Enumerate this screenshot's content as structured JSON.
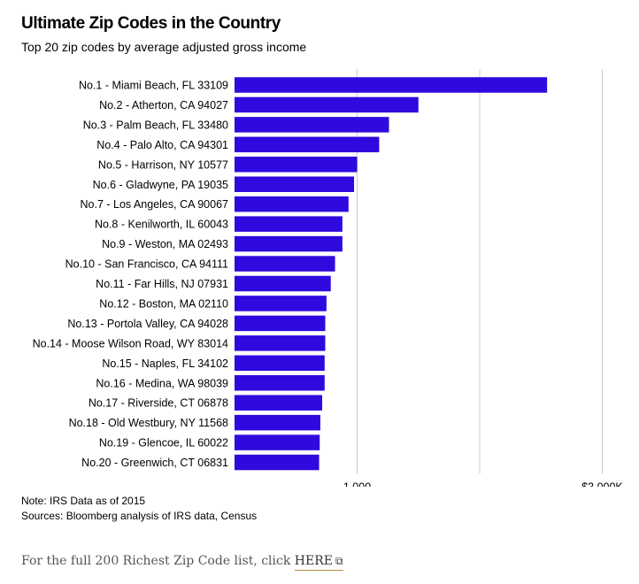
{
  "title": "Ultimate Zip Codes in the Country",
  "subtitle": "Top 20 zip codes by average adjusted gross income",
  "notes": {
    "note": "Note: IRS Data as of 2015",
    "sources": "Sources: Bloomberg analysis of IRS data, Census"
  },
  "footer": {
    "prefix": "For the full 200 Richest Zip Code list, click ",
    "link_label": "HERE",
    "link_icon": "external-link-icon"
  },
  "colors": {
    "bar": "#2f09dd",
    "grid": "#cccccc"
  },
  "chart_data": {
    "type": "bar",
    "orientation": "horizontal",
    "title": "Ultimate Zip Codes in the Country",
    "subtitle": "Top 20 zip codes by average adjusted gross income",
    "categories": [
      "No.1 - Miami Beach, FL 33109",
      "No.2 - Atherton, CA 94027",
      "No.3 - Palm Beach, FL 33480",
      "No.4 - Palo Alto, CA 94301",
      "No.5 - Harrison, NY 10577",
      "No.6 - Gladwyne, PA 19035",
      "No.7 - Los Angeles, CA 90067",
      "No.8 - Kenilworth, IL 60043",
      "No.9 - Weston, MA 02493",
      "No.10 - San Francisco, CA 94111",
      "No.11 - Far Hills, NJ 07931",
      "No.12 - Boston, MA 02110",
      "No.13 - Portola Valley, CA 94028",
      "No.14 - Moose Wilson Road, WY 83014",
      "No.15 - Naples, FL 34102",
      "No.16 - Medina, WA 98039",
      "No.17 - Riverside, CT 06878",
      "No.18 - Old Westbury, NY 11568",
      "No.19 - Glencoe, IL 60022",
      "No.20 - Greenwich, CT 06831"
    ],
    "values": [
      2550,
      1500,
      1260,
      1180,
      1000,
      975,
      930,
      880,
      880,
      820,
      785,
      750,
      740,
      740,
      735,
      735,
      715,
      700,
      695,
      690
    ],
    "xlim": [
      0,
      3000
    ],
    "xticks": [
      {
        "value": 1000,
        "label": "1,000"
      },
      {
        "value": 3000,
        "label": "$3,000K"
      }
    ],
    "gridlines": [
      1000,
      2000,
      3000
    ],
    "xlabel": "",
    "ylabel": "",
    "grid": true,
    "legend": "none"
  }
}
